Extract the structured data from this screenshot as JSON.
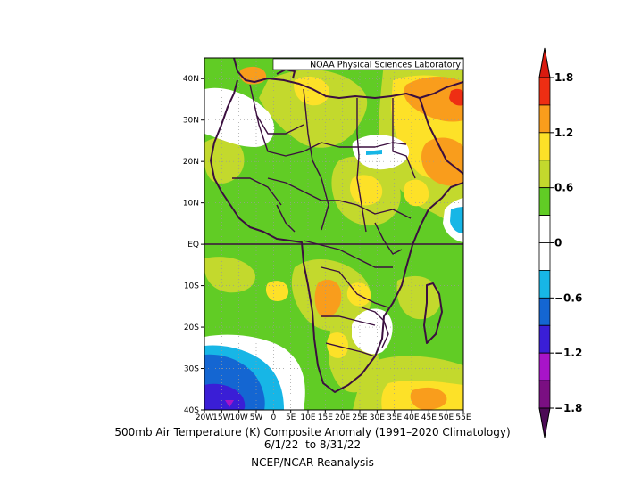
{
  "map": {
    "banner": "NOAA Physical Sciences Laboratory",
    "lat_labels": [
      "40N",
      "30N",
      "20N",
      "10N",
      "EQ",
      "10S",
      "20S",
      "30S",
      "40S"
    ],
    "lon_labels": [
      "20W",
      "15W",
      "10W",
      "5W",
      "0",
      "5E",
      "10E",
      "15E",
      "20E",
      "25E",
      "30E",
      "35E",
      "40E",
      "45E",
      "50E",
      "55E"
    ],
    "lon_range": [
      -20,
      55
    ],
    "lat_range": [
      -40,
      45
    ]
  },
  "colorbar": {
    "labels": [
      "1.8",
      "1.2",
      "0.6",
      "0",
      "−0.6",
      "−1.2",
      "−1.8"
    ],
    "colors": [
      "#ee2e13",
      "#f99d1c",
      "#fde128",
      "#c3d92d",
      "#61cc25",
      "#ffffff",
      "#ffffff",
      "#17b6e6",
      "#1466d2",
      "#3a1ed6",
      "#a814c8",
      "#7a0f82"
    ],
    "top_arrow_color": "#d91a0f",
    "bottom_arrow_color": "#4b0a55"
  },
  "caption": {
    "line1": "500mb Air Temperature (K) Composite Anomaly (1991–2020 Climatology)",
    "line2": "6/1/22  to 8/31/22",
    "line3": "NCEP/NCAR Reanalysis"
  }
}
